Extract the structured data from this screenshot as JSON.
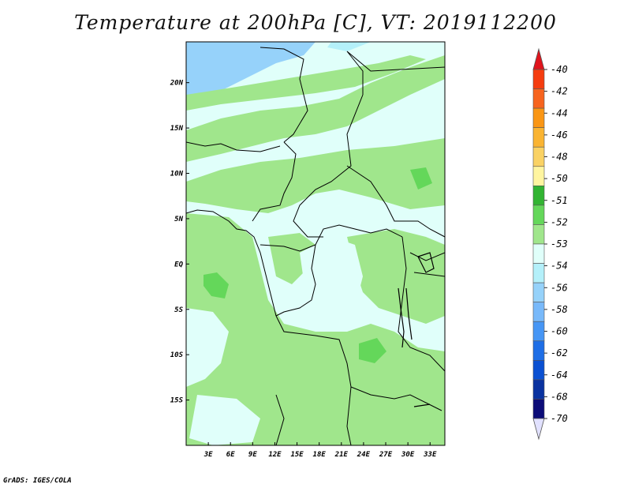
{
  "title": "Temperature at 200hPa [C], VT: 2019112200",
  "footer": "GrADS: IGES/COLA",
  "map": {
    "lon_range": [
      0,
      35
    ],
    "lat_range": [
      -20,
      24.5
    ],
    "lat_ticks": [
      "20N",
      "15N",
      "10N",
      "5N",
      "EQ",
      "5S",
      "10S",
      "15S"
    ],
    "lat_values": [
      20,
      15,
      10,
      5,
      0,
      -5,
      -10,
      -15
    ],
    "lon_ticks": [
      "3E",
      "6E",
      "9E",
      "12E",
      "15E",
      "18E",
      "21E",
      "24E",
      "27E",
      "30E",
      "33E"
    ],
    "lon_values": [
      3,
      6,
      9,
      12,
      15,
      18,
      21,
      24,
      27,
      30,
      33
    ]
  },
  "legend": {
    "labels": [
      "-40",
      "-42",
      "-44",
      "-46",
      "-48",
      "-50",
      "-51",
      "-52",
      "-53",
      "-54",
      "-56",
      "-58",
      "-60",
      "-62",
      "-64",
      "-68",
      "-70"
    ],
    "colors": [
      "#e0141c",
      "#f53c0f",
      "#f7641e",
      "#fa9614",
      "#fab432",
      "#fad264",
      "#fff5a0",
      "#32b432",
      "#64d75a",
      "#a0e68c",
      "#e0fffa",
      "#b4f0fa",
      "#96d2fa",
      "#78b9fa",
      "#4696f5",
      "#1e6ee6",
      "#0a50d2",
      "#0a32a0",
      "#0c0c78",
      "#e1e1ff"
    ]
  }
}
